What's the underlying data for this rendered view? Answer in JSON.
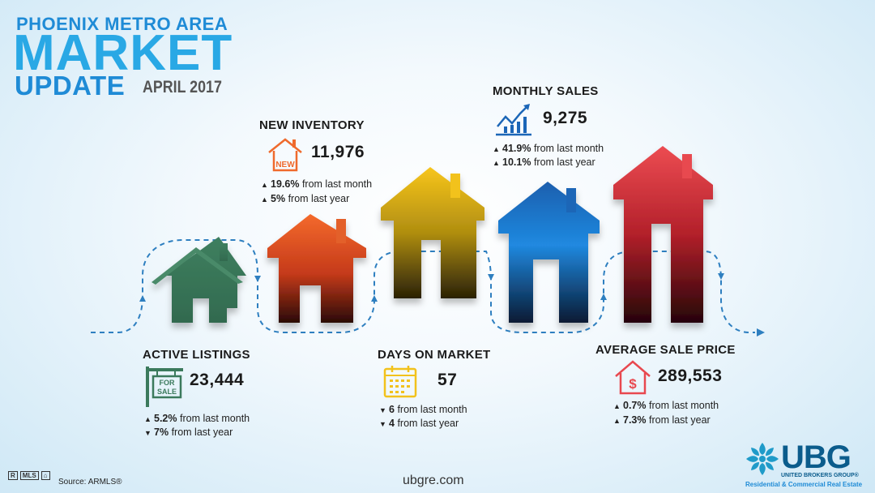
{
  "header": {
    "line1": "PHOENIX METRO AREA",
    "line2": "MARKET",
    "line3": "UPDATE",
    "date": "APRIL 2017"
  },
  "stats": {
    "active_listings": {
      "title": "ACTIVE LISTINGS",
      "value": "23,444",
      "change_month": "5.2%",
      "change_month_dir": "up",
      "change_month_suffix": "from last month",
      "change_year": "7%",
      "change_year_dir": "down",
      "change_year_suffix": "from last year",
      "icon": "for-sale-sign-icon",
      "icon_text_1": "FOR",
      "icon_text_2": "SALE"
    },
    "new_inventory": {
      "title": "NEW INVENTORY",
      "value": "11,976",
      "change_month": "19.6%",
      "change_month_dir": "up",
      "change_month_suffix": "from last month",
      "change_year": "5%",
      "change_year_dir": "up",
      "change_year_suffix": "from last year",
      "icon": "new-house-icon",
      "icon_text": "NEW"
    },
    "days_on_market": {
      "title": "DAYS ON MARKET",
      "value": "57",
      "change_month": "6",
      "change_month_dir": "down",
      "change_month_suffix": "from last month",
      "change_year": "4",
      "change_year_dir": "down",
      "change_year_suffix": "from last year",
      "icon": "calendar-icon"
    },
    "monthly_sales": {
      "title": "MONTHLY SALES",
      "value": "9,275",
      "change_month": "41.9%",
      "change_month_dir": "up",
      "change_month_suffix": "from last month",
      "change_year": "10.1%",
      "change_year_dir": "up",
      "change_year_suffix": "from last year",
      "icon": "chart-growth-icon"
    },
    "average_sale_price": {
      "title": "AVERAGE SALE PRICE",
      "value": "289,553",
      "change_month": "0.7%",
      "change_month_dir": "up",
      "change_month_suffix": "from last month",
      "change_year": "7.3%",
      "change_year_dir": "up",
      "change_year_suffix": "from last year",
      "icon": "dollar-house-icon",
      "icon_text": "$"
    }
  },
  "colors": {
    "active_listings": "#3b7a5c",
    "new_inventory": "#ef6a2d",
    "days_on_market": "#f2c21c",
    "monthly_sales": "#1c66b7",
    "average_sale_price": "#e8484f",
    "dashed_path": "#2e7fc0"
  },
  "footer": {
    "source": "Source: ARMLS®",
    "url": "ubgre.com",
    "mls_label": "MLS",
    "logo_main": "UBG",
    "logo_sub1": "UNITED BROKERS GROUP®",
    "logo_sub2": "Residential & Commercial Real Estate"
  }
}
